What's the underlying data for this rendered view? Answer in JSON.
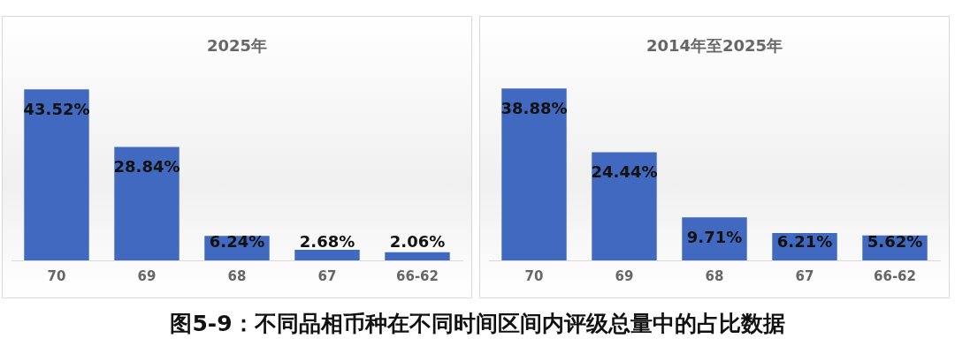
{
  "chart_data": [
    {
      "type": "bar",
      "title": "2025年",
      "categories": [
        "70",
        "69",
        "68",
        "67",
        "66-62"
      ],
      "values": [
        43.52,
        28.84,
        6.24,
        2.68,
        2.06
      ],
      "value_labels": [
        "43.52%",
        "28.84%",
        "6.24%",
        "2.68%",
        "2.06%"
      ],
      "color": "#4169c0",
      "grid": false,
      "legend": false
    },
    {
      "type": "bar",
      "title": "2014年至2025年",
      "categories": [
        "70",
        "69",
        "68",
        "67",
        "66-62"
      ],
      "values": [
        38.88,
        24.44,
        9.71,
        6.21,
        5.62
      ],
      "value_labels": [
        "38.88%",
        "24.44%",
        "9.71%",
        "6.21%",
        "5.62%"
      ],
      "color": "#4169c0",
      "grid": false,
      "legend": false,
      "annotations": [
        "图5-9：不同品相币种在不同时间区间内评级总量中的占比数据"
      ]
    }
  ]
}
